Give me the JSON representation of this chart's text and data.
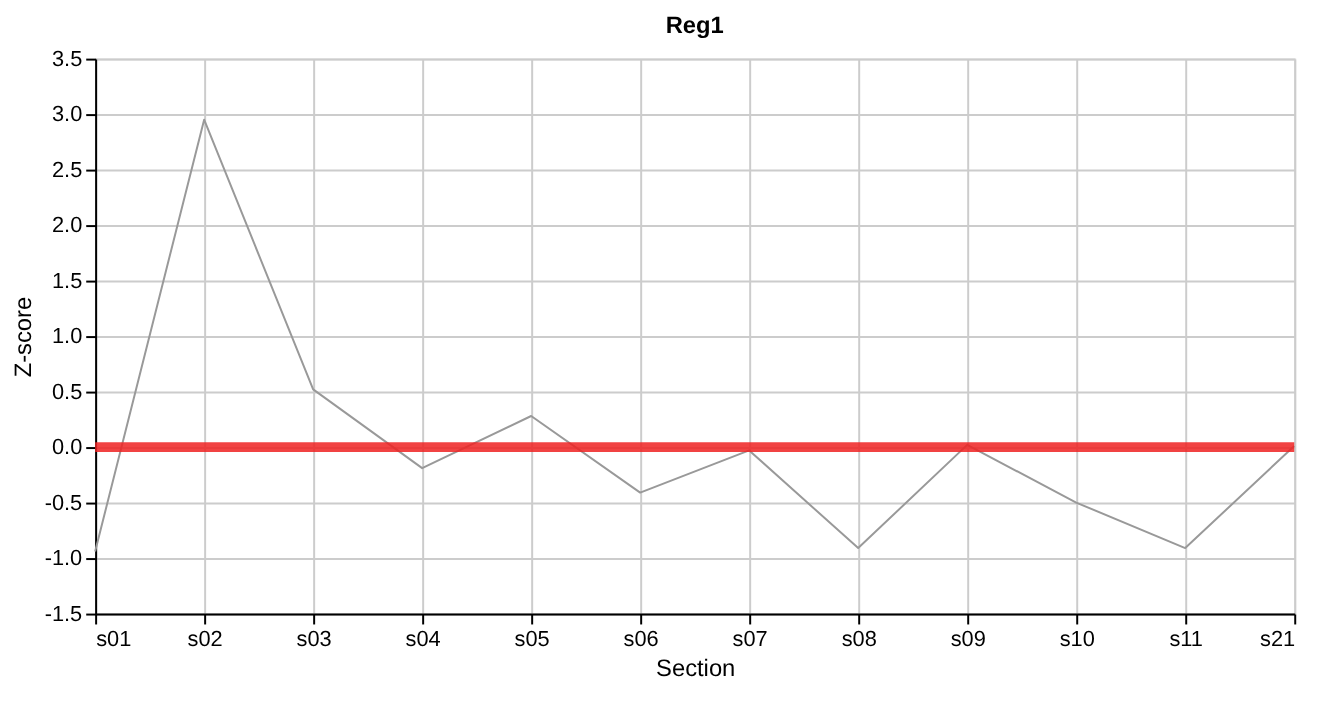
{
  "chart_data": {
    "type": "line",
    "title": "Reg1",
    "xlabel": "Section",
    "ylabel": "Z-score",
    "categories": [
      "s01",
      "s02",
      "s03",
      "s04",
      "s05",
      "s06",
      "s07",
      "s08",
      "s09",
      "s10",
      "s11",
      "s21"
    ],
    "series": [
      {
        "color": "#999999",
        "values": [
          -0.94,
          2.95,
          0.52,
          -0.19,
          0.28,
          -0.41,
          -0.03,
          -0.91,
          0.02,
          -0.5,
          -0.91,
          0.01
        ]
      }
    ],
    "ylim": [
      -1.5,
      3.5
    ],
    "yticks": [
      -1.5,
      {
        "value": -1,
        "label": "-1.0"
      },
      -0.5,
      {
        "value": 0,
        "label": "0.0"
      },
      0.5,
      {
        "value": 1,
        "label": "1.0"
      },
      1.5,
      {
        "value": 2,
        "label": "2.0"
      },
      2.5,
      {
        "value": 3,
        "label": "3.0"
      },
      3.5
    ],
    "ref_lines": [
      {
        "axis": "y",
        "value": 0,
        "color": "#ee2222"
      }
    ],
    "grid": true,
    "marker": "none",
    "line_style": "solid"
  }
}
